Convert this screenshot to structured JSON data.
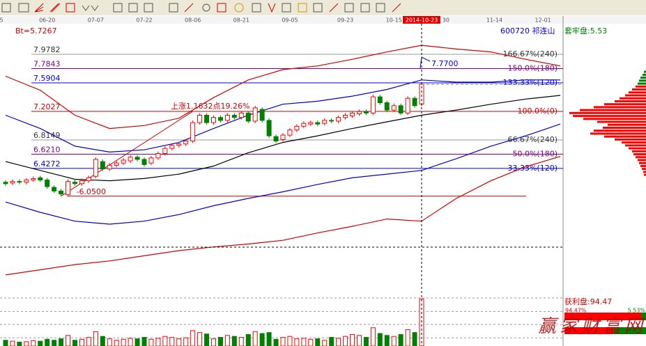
{
  "chart_data": {
    "type": "candlestick",
    "symbol": "600720 祁连山",
    "trapped": "套牢盘:5.53",
    "bt": "Bt=5.7267",
    "annotation": "上涨1.1632点19.26%",
    "high_label": {
      "value": 7.77,
      "label": "7.7700"
    },
    "watermark": "赢家财富网",
    "xlim": [
      -0.804,
      80.4
    ],
    "ylim": [
      4.7424,
      8.4796
    ],
    "xticks": [
      {
        "value": -0.6,
        "label": "5"
      },
      {
        "value": 6,
        "label": "06-20"
      },
      {
        "value": 13,
        "label": "07-07"
      },
      {
        "value": 20,
        "label": "07-22"
      },
      {
        "value": 27,
        "label": "08-06"
      },
      {
        "value": 34,
        "label": "08-21"
      },
      {
        "value": 41,
        "label": "09-05"
      },
      {
        "value": 49,
        "label": "09-23"
      },
      {
        "value": 56,
        "label": "10-15"
      },
      {
        "value": 60,
        "label": "2014-10-23"
      },
      {
        "value": 63.5,
        "label": "30"
      },
      {
        "value": 70.5,
        "label": "11-14"
      },
      {
        "value": 77.5,
        "label": "12-01"
      }
    ],
    "crosshair": {
      "x": 60,
      "y": 5.357
    },
    "levels": [
      {
        "value": 7.9782,
        "label": "7.9782",
        "tag": "166.67%(240)",
        "color": "#999999"
      },
      {
        "value": 7.7843,
        "label": "7.7843",
        "tag": "150.0%(180)",
        "color": "#800080"
      },
      {
        "value": 7.5904,
        "label": "7.5904",
        "tag": "133.33%(120)",
        "color": "#0000cc"
      },
      {
        "value": 7.2027,
        "label": "7.2027",
        "tag": "100.0%(0)",
        "color": "#cc0000"
      },
      {
        "value": 6.8149,
        "label": "6.8149",
        "tag": "66.67%(240)",
        "color": "#999999"
      },
      {
        "value": 6.621,
        "label": "6.6210",
        "tag": "50.0%(180)",
        "color": "#800080"
      },
      {
        "value": 6.4272,
        "label": "6.4272",
        "tag": "33.33%(120)",
        "color": "#0000cc"
      },
      {
        "value": 6.05,
        "label": "-6.0500",
        "color": "#cc0000"
      }
    ],
    "open": [
      6.24,
      6.23,
      6.25,
      6.24,
      6.27,
      6.3,
      6.27,
      6.17,
      6.12,
      6.07,
      6.24,
      6.22,
      6.26,
      6.32,
      6.52,
      6.42,
      6.47,
      6.5,
      6.53,
      6.58,
      6.55,
      6.5,
      6.57,
      6.63,
      6.7,
      6.74,
      6.76,
      6.8,
      7.05,
      7.15,
      7.05,
      7.12,
      7.08,
      7.15,
      7.12,
      7.18,
      7.07,
      7.23,
      7.08,
      6.86,
      6.82,
      6.88,
      6.95,
      7.0,
      7.03,
      7.05,
      7.04,
      7.08,
      7.07,
      7.12,
      7.14,
      7.17,
      7.2,
      7.18,
      7.4,
      7.32,
      7.22,
      7.28,
      7.18,
      7.38,
      7.3
    ],
    "close": [
      6.22,
      6.25,
      6.24,
      6.27,
      6.29,
      6.27,
      6.18,
      6.12,
      6.08,
      6.25,
      6.22,
      6.26,
      6.3,
      6.55,
      6.42,
      6.47,
      6.5,
      6.54,
      6.58,
      6.55,
      6.48,
      6.57,
      6.63,
      6.7,
      6.74,
      6.76,
      6.8,
      7.05,
      7.15,
      7.05,
      7.12,
      7.08,
      7.15,
      7.12,
      7.18,
      7.07,
      7.25,
      7.08,
      6.87,
      6.8,
      6.88,
      6.95,
      7.0,
      7.04,
      7.05,
      7.03,
      7.08,
      7.07,
      7.12,
      7.15,
      7.18,
      7.2,
      7.18,
      7.4,
      7.32,
      7.22,
      7.28,
      7.18,
      7.38,
      7.28,
      7.57
    ],
    "volume": [
      12,
      10,
      8,
      9,
      11,
      10,
      14,
      12,
      15,
      22,
      12,
      14,
      18,
      30,
      20,
      15,
      12,
      14,
      16,
      15,
      18,
      14,
      16,
      20,
      18,
      15,
      17,
      32,
      28,
      25,
      15,
      18,
      22,
      20,
      18,
      24,
      30,
      26,
      28,
      14,
      18,
      20,
      15,
      16,
      14,
      15,
      12,
      18,
      16,
      20,
      24,
      22,
      18,
      38,
      26,
      22,
      20,
      24,
      34,
      28,
      98
    ],
    "vol_ylim": [
      0,
      100
    ],
    "vol_yticks": [
      17,
      45,
      72,
      100
    ],
    "up_color": "#ff0000",
    "down_color": "#008000",
    "lines": [
      {
        "color": "#cc0000",
        "x": [
          0,
          5,
          10,
          15,
          20,
          25,
          30,
          35,
          40,
          45,
          50,
          55,
          60,
          65,
          70,
          75,
          80
        ],
        "values": [
          7.68,
          7.49,
          7.15,
          6.97,
          7.01,
          7.11,
          7.39,
          7.63,
          7.77,
          7.82,
          7.91,
          8.01,
          8.1,
          8.05,
          8.01,
          7.91,
          7.82
        ]
      },
      {
        "color": "#0000cc",
        "x": [
          0,
          5,
          10,
          15,
          20,
          25,
          30,
          35,
          40,
          45,
          50,
          55,
          60,
          65,
          70,
          75,
          80
        ],
        "values": [
          7.15,
          6.97,
          6.73,
          6.65,
          6.68,
          6.78,
          6.97,
          7.15,
          7.3,
          7.34,
          7.41,
          7.5,
          7.63,
          7.6,
          7.6,
          7.63,
          7.63
        ]
      },
      {
        "color": "#000000",
        "x": [
          0,
          5,
          10,
          15,
          20,
          25,
          30,
          35,
          40,
          45,
          50,
          55,
          60,
          65,
          70,
          75,
          80
        ],
        "values": [
          6.52,
          6.4,
          6.28,
          6.26,
          6.29,
          6.35,
          6.46,
          6.64,
          6.78,
          6.87,
          6.97,
          7.06,
          7.15,
          7.22,
          7.3,
          7.37,
          7.42
        ]
      },
      {
        "color": "#0000cc",
        "x": [
          0,
          5,
          10,
          15,
          20,
          25,
          30,
          35,
          40,
          45,
          50,
          55,
          60,
          65,
          70,
          75,
          80
        ],
        "values": [
          5.97,
          5.83,
          5.71,
          5.67,
          5.71,
          5.8,
          5.92,
          6.02,
          6.11,
          6.21,
          6.3,
          6.35,
          6.4,
          6.56,
          6.73,
          6.87,
          7.03
        ]
      },
      {
        "color": "#cc0000",
        "x": [
          0,
          5,
          10,
          15,
          20,
          25,
          30,
          35,
          40,
          45,
          50,
          55,
          60,
          65,
          70,
          75,
          80
        ],
        "values": [
          4.98,
          5.05,
          5.12,
          5.17,
          5.24,
          5.31,
          5.36,
          5.4,
          5.45,
          5.55,
          5.64,
          5.74,
          5.71,
          6.02,
          6.26,
          6.45,
          6.59
        ]
      }
    ],
    "chips": {
      "prices": [
        7.74,
        7.7,
        7.66,
        7.62,
        7.58,
        7.54,
        7.5,
        7.46,
        7.42,
        7.38,
        7.34,
        7.3,
        7.26,
        7.22,
        7.18,
        7.14,
        7.1,
        7.06,
        7.02,
        6.98,
        6.94,
        6.9,
        6.86,
        6.82,
        6.78,
        6.74,
        6.7,
        6.66,
        6.62,
        6.58,
        6.54,
        6.5,
        6.46,
        6.42,
        6.38,
        6.34
      ],
      "values": [
        3,
        5,
        8,
        10,
        12,
        15,
        20,
        25,
        30,
        38,
        45,
        60,
        75,
        95,
        110,
        105,
        90,
        70,
        55,
        62,
        75,
        80,
        60,
        45,
        35,
        30,
        25,
        20,
        18,
        15,
        12,
        10,
        8,
        6,
        4,
        3
      ]
    },
    "profit": {
      "label": "获利盘:94.47",
      "value": 94.47,
      "value_label": "94.47%",
      "loss_value": 5.53,
      "loss_label": "5.53%"
    }
  }
}
